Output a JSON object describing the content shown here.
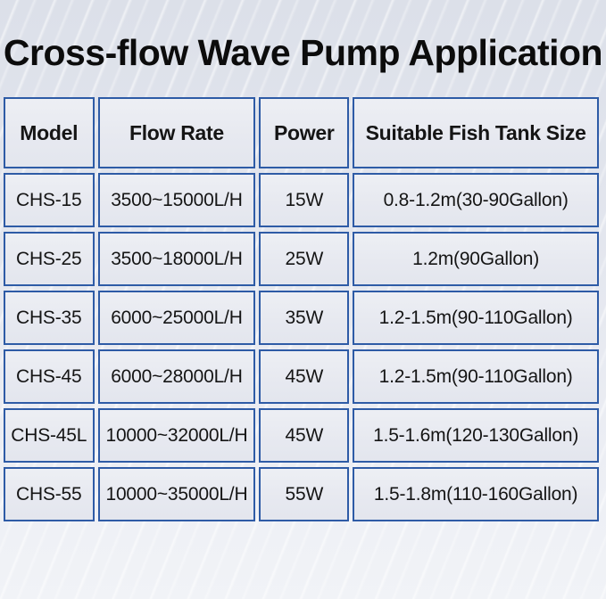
{
  "title": "Cross-flow Wave Pump Application",
  "chart_data": {
    "type": "table",
    "title": "Cross-flow Wave Pump Application",
    "columns": [
      "Model",
      "Flow Rate",
      "Power",
      "Suitable Fish Tank Size"
    ],
    "rows": [
      [
        "CHS-15",
        "3500~15000L/H",
        "15W",
        "0.8-1.2m(30-90Gallon)"
      ],
      [
        "CHS-25",
        "3500~18000L/H",
        "25W",
        "1.2m(90Gallon)"
      ],
      [
        "CHS-35",
        "6000~25000L/H",
        "35W",
        "1.2-1.5m(90-110Gallon)"
      ],
      [
        "CHS-45",
        "6000~28000L/H",
        "45W",
        "1.2-1.5m(90-110Gallon)"
      ],
      [
        "CHS-45L",
        "10000~32000L/H",
        "45W",
        "1.5-1.6m(120-130Gallon)"
      ],
      [
        "CHS-55",
        "10000~35000L/H",
        "55W",
        "1.5-1.8m(110-160Gallon)"
      ]
    ]
  },
  "colors": {
    "border": "#2e5ba6",
    "cell_bg": "#e8eaf1",
    "page_bg_top": "#dce0e9",
    "page_bg_bottom": "#f1f3f7",
    "title_text": "#0c0c0c",
    "cell_text": "#151515"
  }
}
